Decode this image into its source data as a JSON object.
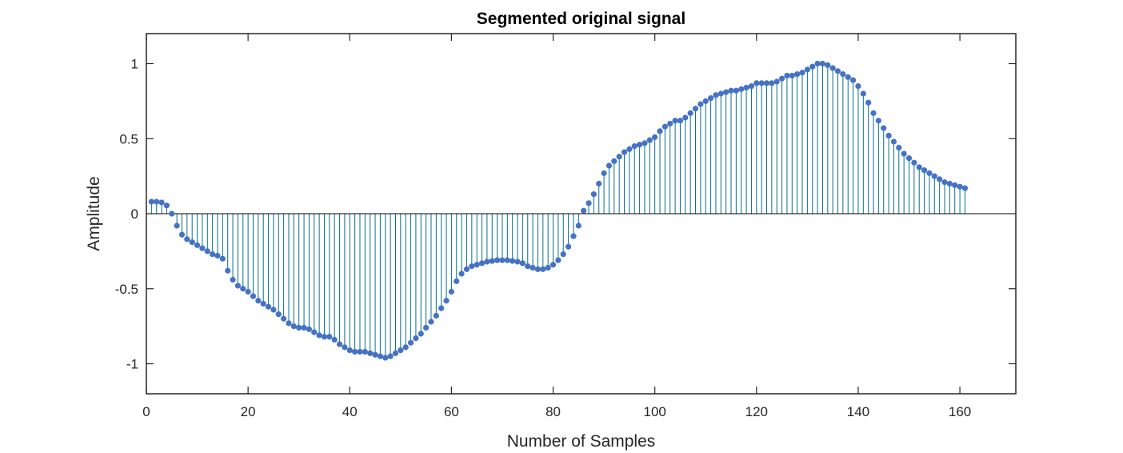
{
  "chart_data": {
    "type": "stem",
    "title": "Segmented original signal",
    "xlabel": "Number of Samples",
    "ylabel": "Amplitude",
    "xlim": [
      0,
      171
    ],
    "ylim": [
      -1.2,
      1.2
    ],
    "xticks": [
      0,
      20,
      40,
      60,
      80,
      100,
      120,
      140,
      160
    ],
    "xtick_labels": [
      "0",
      "20",
      "40",
      "60",
      "80",
      "100",
      "120",
      "140",
      "160"
    ],
    "yticks": [
      -1,
      -0.5,
      0,
      0.5,
      1
    ],
    "ytick_labels": [
      "-1",
      "-0.5",
      "0",
      "0.5",
      "1"
    ],
    "grid": false,
    "baseline": 0,
    "colors": {
      "stem": "#0a6e8c",
      "marker": "#4472c4",
      "axis": "#262626",
      "baseline": "#000000"
    },
    "series": [
      {
        "x": [
          1,
          2,
          3,
          4,
          5,
          6,
          7,
          8,
          9,
          10,
          11,
          12,
          13,
          14,
          15,
          16,
          17,
          18,
          19,
          20,
          21,
          22,
          23,
          24,
          25,
          26,
          27,
          28,
          29,
          30,
          31,
          32,
          33,
          34,
          35,
          36,
          37,
          38,
          39,
          40,
          41,
          42,
          43,
          44,
          45,
          46,
          47,
          48,
          49,
          50,
          51,
          52,
          53,
          54,
          55,
          56,
          57,
          58,
          59,
          60,
          61,
          62,
          63,
          64,
          65,
          66,
          67,
          68,
          69,
          70,
          71,
          72,
          73,
          74,
          75,
          76,
          77,
          78,
          79,
          80,
          81,
          82,
          83,
          84,
          85,
          86,
          87,
          88,
          89,
          90,
          91,
          92,
          93,
          94,
          95,
          96,
          97,
          98,
          99,
          100,
          101,
          102,
          103,
          104,
          105,
          106,
          107,
          108,
          109,
          110,
          111,
          112,
          113,
          114,
          115,
          116,
          117,
          118,
          119,
          120,
          121,
          122,
          123,
          124,
          125,
          126,
          127,
          128,
          129,
          130,
          131,
          132,
          133,
          134,
          135,
          136,
          137,
          138,
          139,
          140,
          141,
          142,
          143,
          144,
          145,
          146,
          147,
          148,
          149,
          150,
          151,
          152,
          153,
          154,
          155,
          156,
          157,
          158,
          159,
          160,
          161
        ],
        "values": [
          0.08,
          0.08,
          0.075,
          0.055,
          0.0,
          -0.08,
          -0.14,
          -0.17,
          -0.19,
          -0.21,
          -0.23,
          -0.25,
          -0.27,
          -0.28,
          -0.3,
          -0.38,
          -0.44,
          -0.48,
          -0.5,
          -0.52,
          -0.55,
          -0.58,
          -0.6,
          -0.62,
          -0.64,
          -0.67,
          -0.7,
          -0.73,
          -0.75,
          -0.76,
          -0.76,
          -0.77,
          -0.79,
          -0.81,
          -0.82,
          -0.82,
          -0.84,
          -0.87,
          -0.89,
          -0.91,
          -0.92,
          -0.92,
          -0.92,
          -0.93,
          -0.94,
          -0.95,
          -0.96,
          -0.95,
          -0.93,
          -0.91,
          -0.89,
          -0.86,
          -0.83,
          -0.8,
          -0.76,
          -0.72,
          -0.68,
          -0.63,
          -0.58,
          -0.52,
          -0.45,
          -0.4,
          -0.37,
          -0.35,
          -0.34,
          -0.33,
          -0.32,
          -0.315,
          -0.31,
          -0.31,
          -0.31,
          -0.315,
          -0.32,
          -0.33,
          -0.35,
          -0.36,
          -0.37,
          -0.37,
          -0.36,
          -0.34,
          -0.31,
          -0.27,
          -0.22,
          -0.15,
          -0.08,
          0.02,
          0.07,
          0.13,
          0.2,
          0.27,
          0.32,
          0.35,
          0.38,
          0.41,
          0.43,
          0.45,
          0.46,
          0.47,
          0.49,
          0.51,
          0.55,
          0.58,
          0.6,
          0.62,
          0.62,
          0.64,
          0.67,
          0.7,
          0.73,
          0.75,
          0.77,
          0.79,
          0.8,
          0.81,
          0.82,
          0.82,
          0.83,
          0.84,
          0.85,
          0.87,
          0.87,
          0.87,
          0.87,
          0.88,
          0.9,
          0.92,
          0.92,
          0.93,
          0.94,
          0.96,
          0.98,
          1.0,
          1.0,
          0.99,
          0.97,
          0.95,
          0.93,
          0.91,
          0.89,
          0.85,
          0.8,
          0.74,
          0.67,
          0.62,
          0.57,
          0.52,
          0.48,
          0.44,
          0.4,
          0.37,
          0.34,
          0.31,
          0.29,
          0.27,
          0.25,
          0.23,
          0.21,
          0.2,
          0.19,
          0.18,
          0.17
        ]
      }
    ]
  }
}
